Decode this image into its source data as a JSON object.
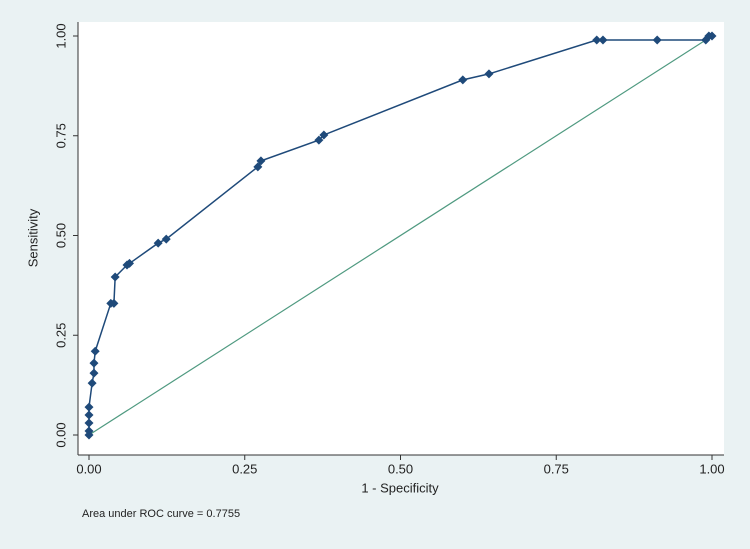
{
  "chart_data": {
    "type": "line",
    "x": [
      0,
      0,
      0,
      0,
      0,
      0.005,
      0.008,
      0.008,
      0.01,
      0.035,
      0.04,
      0.042,
      0.061,
      0.065,
      0.111,
      0.124,
      0.271,
      0.276,
      0.369,
      0.377,
      0.6,
      0.642,
      0.815,
      0.825,
      0.912,
      0.99,
      0.995,
      1
    ],
    "values": [
      0,
      0.01,
      0.03,
      0.05,
      0.07,
      0.13,
      0.155,
      0.18,
      0.21,
      0.33,
      0.33,
      0.396,
      0.426,
      0.43,
      0.481,
      0.491,
      0.672,
      0.687,
      0.739,
      0.752,
      0.89,
      0.905,
      0.99,
      0.99,
      0.99,
      0.99,
      1,
      1
    ],
    "color": "#1f4a7a",
    "reference_color": "#4f9a80",
    "xlim": [
      0,
      1
    ],
    "ylim": [
      0,
      1
    ],
    "xticks": [
      {
        "value": 0,
        "label": "0.00"
      },
      {
        "value": 0.25,
        "label": "0.25"
      },
      {
        "value": 0.5,
        "label": "0.50"
      },
      {
        "value": 0.75,
        "label": "0.75"
      },
      {
        "value": 1,
        "label": "1.00"
      }
    ],
    "yticks": [
      {
        "value": 0,
        "label": "0.00"
      },
      {
        "value": 0.25,
        "label": "0.25"
      },
      {
        "value": 0.5,
        "label": "0.50"
      },
      {
        "value": 0.75,
        "label": "0.75"
      },
      {
        "value": 1,
        "label": "1.00"
      }
    ],
    "x_label": "1 - Specificity",
    "y_label": "Sensitivity",
    "annotation": "Area under ROC curve = 0.7755",
    "grid": false
  }
}
